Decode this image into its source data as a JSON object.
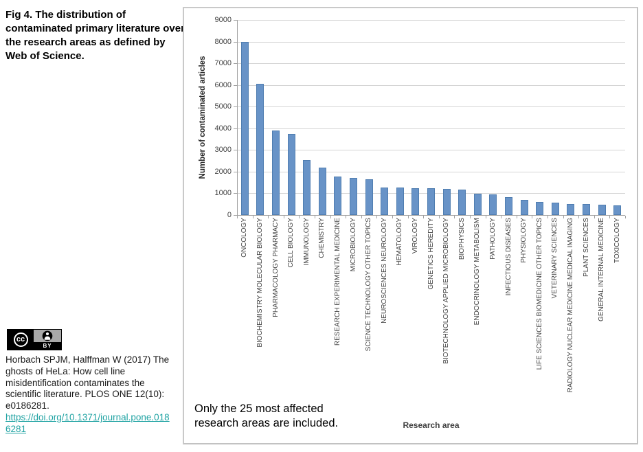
{
  "figure_caption": "Fig 4. The distribution of contaminated primary literature over the research areas as defined by Web of Science.",
  "license": {
    "cc_label": "cc",
    "by_label": "BY"
  },
  "citation": {
    "text": "Horbach SPJM, Halffman W (2017) The ghosts of HeLa: How cell line misidentification contaminates the scientific literature. PLOS ONE 12(10): e0186281.",
    "link_text": "https://doi.org/10.1371/journal.pone.0186281"
  },
  "chart": {
    "note": "Only the 25 most affected research areas are included.",
    "colors": {
      "bar": "#6893C7",
      "bar_border": "#4F7DB0",
      "grid": "#D4D4D4",
      "axis": "#A0A0A0",
      "tick_text": "#3F3F3F"
    }
  },
  "chart_data": {
    "type": "bar",
    "title": "",
    "xlabel": "Research area",
    "ylabel": "Number of contaminated articles",
    "ylim": [
      0,
      9000
    ],
    "ytick_interval": 1000,
    "grid": true,
    "legend": false,
    "categories": [
      "ONCOLOGY",
      "BIOCHEMISTRY MOLECULAR BIOLOGY",
      "PHARMACOLOGY PHARMACY",
      "CELL BIOLOGY",
      "IMMUNOLOGY",
      "CHEMISTRY",
      "RESEARCH EXPERIMENTAL MEDICINE",
      "MICROBIOLOGY",
      "SCIENCE TECHNOLOGY OTHER TOPICS",
      "NEUROSCIENCES NEUROLOGY",
      "HEMATOLOGY",
      "VIROLOGY",
      "GENETICS HEREDITY",
      "BIOTECHNOLOGY APPLIED MICROBIOLOGY",
      "BIOPHYSICS",
      "ENDOCRINOLOGY METABOLISM",
      "PATHOLOGY",
      "INFECTIOUS DISEASES",
      "PHYSIOLOGY",
      "LIFE SCIENCES BIOMEDICINE OTHER TOPICS",
      "VETERINARY SCIENCES",
      "RADIOLOGY NUCLEAR MEDICINE MEDICAL IMAGING",
      "PLANT SCIENCES",
      "GENERAL INTERNAL MEDICINE",
      "TOXICOLOGY"
    ],
    "values": [
      8000,
      6050,
      3900,
      3730,
      2550,
      2180,
      1780,
      1700,
      1640,
      1280,
      1270,
      1250,
      1230,
      1200,
      1160,
      980,
      950,
      810,
      700,
      600,
      570,
      520,
      500,
      480,
      440
    ]
  }
}
